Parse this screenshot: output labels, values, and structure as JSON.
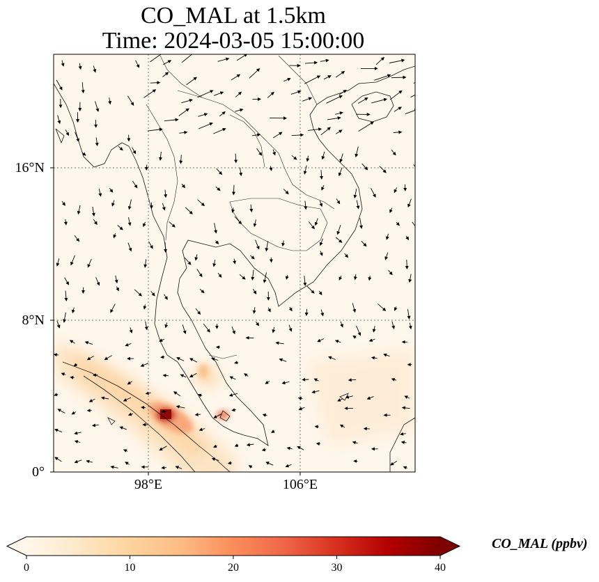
{
  "title": {
    "line1": "CO_MAL at 1.5km",
    "line2": "Time: 2024-03-05 15:00:00"
  },
  "map": {
    "variable": "CO_MAL",
    "level": "1.5km",
    "lat_ticks": [
      "16°N",
      "8°N",
      "0°"
    ],
    "lon_ticks": [
      "98°E",
      "106°E"
    ],
    "gridlines": true,
    "features": [
      "coastlines",
      "country borders",
      "wind vectors",
      "CO concentration field"
    ],
    "hotspots": [
      {
        "lon": 98.9,
        "lat": 2.9,
        "value": 40
      },
      {
        "lon": 101.7,
        "lat": 3.1,
        "value": 22
      },
      {
        "lon": 101.1,
        "lat": 5.3,
        "value": 10
      }
    ]
  },
  "colorbar": {
    "label": "CO_MAL (ppbv)",
    "ticks": [
      "0",
      "10",
      "20",
      "30",
      "40"
    ],
    "min": 0,
    "max": 40,
    "colormap": "OrRd",
    "extend": "both",
    "colors": [
      "#fff7ec",
      "#fee8c8",
      "#fdd49e",
      "#fdbb84",
      "#fc8d59",
      "#ef6548",
      "#d7301f",
      "#b30000",
      "#7f0000"
    ]
  }
}
